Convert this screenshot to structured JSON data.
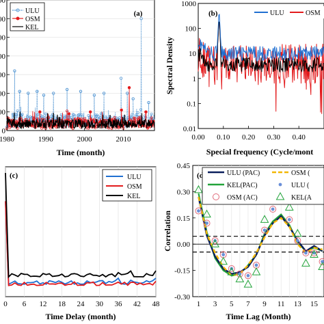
{
  "chart_data": [
    {
      "panel": "(a)",
      "type": "line",
      "xlabel": "Time (month)",
      "ylabel": "",
      "xlim": [
        1980,
        2018
      ],
      "ylim": [
        0,
        7
      ],
      "x_ticks": [
        1980,
        1990,
        2000,
        2010
      ],
      "y_ticks": [
        "0",
        "00",
        "00",
        "00",
        "00",
        "00",
        "00",
        "00"
      ],
      "legend": {
        "position": "top-left",
        "entries": [
          "ULU",
          "OSM",
          "KEL"
        ]
      },
      "series": [
        {
          "name": "ULU",
          "color": "#5b9bd5",
          "marker": "circle",
          "style": "dotted",
          "spikes": [
            [
              1982.0,
              3.2
            ],
            [
              1983.3,
              2.1
            ],
            [
              1985.5,
              2.0
            ],
            [
              1987.8,
              2.1
            ],
            [
              1989.5,
              1.9
            ],
            [
              1992.0,
              2.0
            ],
            [
              1995.5,
              2.2
            ],
            [
              1999.0,
              2.1
            ],
            [
              2002.5,
              1.9
            ],
            [
              2005.0,
              2.0
            ],
            [
              2009.4,
              2.8
            ],
            [
              2011.0,
              2.0
            ],
            [
              2012.5,
              1.7
            ],
            [
              2014.6,
              6.0
            ],
            [
              2016.5,
              1.5
            ]
          ],
          "base": [
            0.2,
            0.9
          ]
        },
        {
          "name": "OSM",
          "color": "#e31a1c",
          "marker": "circle",
          "style": "solid",
          "spikes": [
            [
              1988.5,
              1.0
            ],
            [
              1996.0,
              0.9
            ],
            [
              2001.5,
              1.0
            ],
            [
              2009.5,
              1.1
            ],
            [
              2011.5,
              2.3
            ],
            [
              2015.8,
              1.0
            ]
          ],
          "base": [
            0.1,
            0.7
          ]
        },
        {
          "name": "KEL",
          "color": "#000000",
          "marker": "none",
          "style": "solid",
          "spikes": [],
          "base": [
            0.1,
            0.6
          ]
        }
      ]
    },
    {
      "panel": "(b)",
      "type": "line",
      "xlabel": "Special frequency (Cycle/mont",
      "ylabel": "Spectral Density",
      "xlim": [
        0,
        0.5
      ],
      "ylim": [
        0.01,
        1000
      ],
      "yscale": "log",
      "x_ticks": [
        "0.00",
        "0.10",
        "0.20",
        "0.30",
        "0.40"
      ],
      "y_ticks": [
        "0.01",
        "0.1",
        "1",
        "10",
        "100",
        "1000"
      ],
      "legend": {
        "position": "top-right",
        "entries": [
          "ULU",
          "OSM"
        ]
      },
      "peak": {
        "x": 0.083,
        "y": 600
      },
      "series": [
        {
          "name": "ULU",
          "color": "#1f6fd1",
          "median_log": 1.0,
          "spread": 0.3
        },
        {
          "name": "OSM",
          "color": "#e31a1c",
          "median_log": 0.6,
          "spread": 0.8
        },
        {
          "name": "KEL",
          "color": "#000000",
          "median_log": 0.55,
          "spread": 0.3
        }
      ]
    },
    {
      "panel": "(c)",
      "type": "line",
      "xlabel": "Time Delay (month)",
      "ylabel": "",
      "xlim": [
        0,
        48
      ],
      "ylim": [
        0,
        1
      ],
      "x_ticks": [
        0,
        6,
        12,
        18,
        24,
        30,
        36,
        42,
        48
      ],
      "legend": {
        "position": "top-right",
        "entries": [
          "ULU",
          "OSM",
          "KEL"
        ]
      },
      "series": [
        {
          "name": "ULU",
          "color": "#1f6fd1",
          "start": 0.72,
          "level": 0.06
        },
        {
          "name": "OSM",
          "color": "#e31a1c",
          "start": 0.72,
          "level": 0.05
        },
        {
          "name": "KEL",
          "color": "#000000",
          "start": 0.95,
          "level": 0.12
        }
      ]
    },
    {
      "panel": "(d)",
      "type": "line",
      "xlabel": "Time Lag (Month)",
      "ylabel": "Correlation",
      "xlim": [
        0.3,
        16.2
      ],
      "ylim": [
        -0.3,
        0.45
      ],
      "x_ticks": [
        1,
        3,
        5,
        7,
        9,
        11,
        13,
        15
      ],
      "y_ticks": [
        "-0.30",
        "-0.15",
        "0.00",
        "0.15",
        "0.30",
        "0.45"
      ],
      "confidence_bounds": [
        0.045,
        -0.045
      ],
      "legend": {
        "position": "top",
        "entries": [
          "ULU (PAC)",
          "OSM (",
          "KEL(PAC)",
          "ULU (",
          "OSM (AC)",
          "KEL(A"
        ]
      },
      "lags": [
        1,
        2,
        3,
        4,
        5,
        6,
        7,
        8,
        9,
        10,
        11,
        12,
        13,
        14,
        15,
        16
      ],
      "series": [
        {
          "name": "ULU (PAC)",
          "color": "#0a1f5c",
          "values": [
            0.27,
            0.05,
            -0.07,
            -0.14,
            -0.17,
            -0.16,
            -0.13,
            -0.06,
            0.05,
            0.12,
            0.16,
            0.1,
            0.02,
            -0.04,
            -0.01,
            -0.04
          ]
        },
        {
          "name": "OSM (",
          "color": "#f2b705",
          "values": [
            0.27,
            0.06,
            -0.05,
            -0.13,
            -0.18,
            -0.17,
            -0.12,
            -0.05,
            0.04,
            0.12,
            0.15,
            0.1,
            0.0,
            -0.05,
            -0.02,
            -0.03
          ]
        },
        {
          "name": "KEL(PAC)",
          "color": "#22a33a",
          "values": [
            0.29,
            0.07,
            -0.08,
            -0.15,
            -0.18,
            -0.17,
            -0.12,
            -0.06,
            0.06,
            0.13,
            0.17,
            0.11,
            0.01,
            -0.04,
            -0.02,
            -0.04
          ]
        },
        {
          "name": "ULU (",
          "color": "#6a8fd8",
          "marker": "dot",
          "values": [
            0.19,
            0.12,
            0.02,
            -0.06,
            -0.14,
            -0.17,
            -0.18,
            -0.12,
            0.08,
            0.2,
            0.26,
            0.14,
            0.02,
            -0.05,
            -0.05,
            -0.1
          ]
        },
        {
          "name": "OSM (AC)",
          "color": "#e06a7a",
          "marker": "circle",
          "values": [
            0.19,
            0.12,
            0.02,
            -0.06,
            -0.14,
            -0.17,
            -0.18,
            -0.12,
            0.08,
            0.2,
            0.26,
            0.14,
            0.02,
            -0.05,
            -0.05,
            -0.1
          ]
        },
        {
          "name": "KEL(A",
          "color": "#22a33a",
          "marker": "triangle",
          "values": [
            0.31,
            0.17,
            0.0,
            -0.1,
            -0.16,
            -0.2,
            -0.23,
            -0.16,
            0.14,
            0.27,
            0.32,
            0.21,
            0.06,
            -0.11,
            -0.06,
            -0.13
          ]
        }
      ]
    }
  ]
}
